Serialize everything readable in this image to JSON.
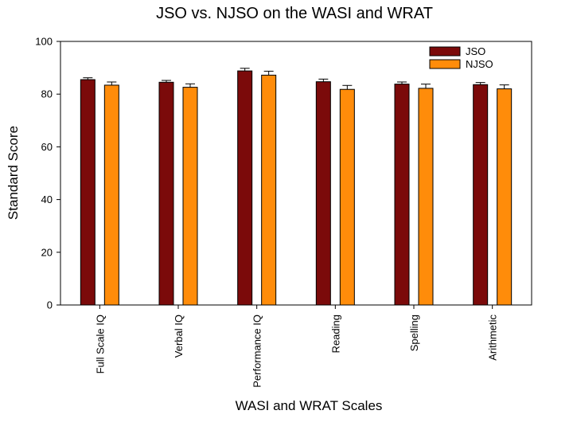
{
  "chart_data": {
    "type": "bar",
    "title": "JSO vs. NJSO on the WASI and WRAT",
    "xlabel": "WASI and WRAT Scales",
    "ylabel": "Standard Score",
    "ylim": [
      0,
      100
    ],
    "yticks": [
      0,
      20,
      40,
      60,
      80,
      100
    ],
    "grid": false,
    "legend_position": "top-right",
    "categories": [
      "Full Scale IQ",
      "Verbal IQ",
      "Performance IQ",
      "Reading",
      "Spelling",
      "Arithmetic"
    ],
    "series": [
      {
        "name": "JSO",
        "color": "#7b0a0a",
        "values": [
          85.5,
          84.5,
          88.8,
          84.7,
          83.8,
          83.6
        ],
        "errors": [
          0.7,
          0.7,
          1.0,
          1.0,
          0.8,
          0.8
        ]
      },
      {
        "name": "NJSO",
        "color": "#ff8c0a",
        "values": [
          83.4,
          82.6,
          87.2,
          81.8,
          82.2,
          82.0
        ],
        "errors": [
          1.2,
          1.3,
          1.5,
          1.5,
          1.6,
          1.5
        ]
      }
    ]
  }
}
